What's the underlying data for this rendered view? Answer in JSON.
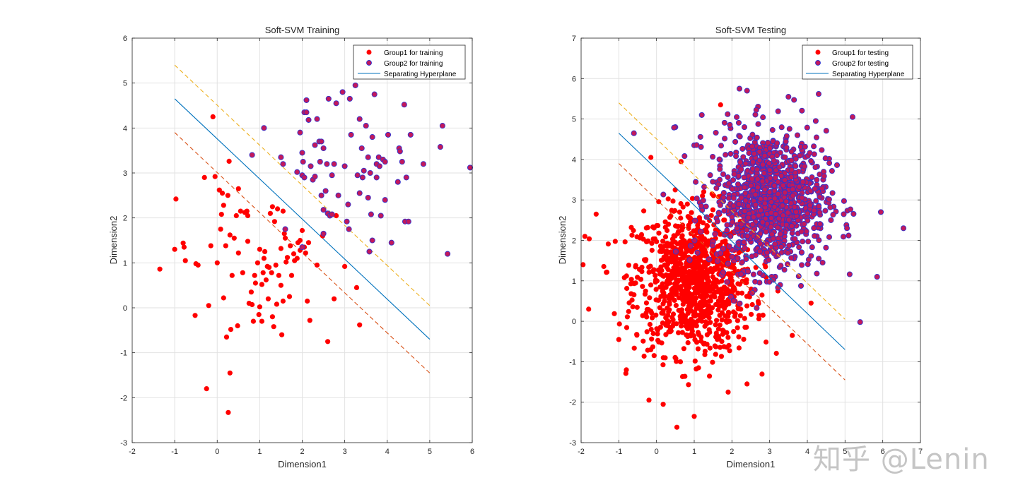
{
  "watermark": "知乎 @Lenin",
  "colors": {
    "group1": "#ff0000",
    "group2_fill": "#c2185b",
    "group2_edge": "#3333cc",
    "hyperplane": "#0072bd",
    "margin_upper": "#edb120",
    "margin_lower": "#d95319",
    "grid": "#e2e2e2",
    "axis": "#262626"
  },
  "chart_data": [
    {
      "type": "scatter",
      "title": "Soft-SVM Training",
      "xlabel": "Dimension1",
      "ylabel": "Dimension2",
      "xlim": [
        -2,
        6
      ],
      "ylim": [
        -3,
        6
      ],
      "xticks": [
        "-2",
        "-1",
        "0",
        "1",
        "2",
        "3",
        "4",
        "5",
        "6"
      ],
      "yticks": [
        "-3",
        "-2",
        "-1",
        "0",
        "1",
        "2",
        "3",
        "4",
        "5",
        "6"
      ],
      "grid": true,
      "legend_position": "top-right",
      "legend": [
        "Group1 for training",
        "Group2 for training",
        "Separating Hyperplane"
      ],
      "lines": {
        "hyperplane": [
          [
            -1,
            4.65
          ],
          [
            5,
            -0.7
          ]
        ],
        "margin_upper": [
          [
            -1,
            5.4
          ],
          [
            5,
            0.05
          ]
        ],
        "margin_lower": [
          [
            -1,
            3.9
          ],
          [
            5,
            -1.45
          ]
        ]
      },
      "series": [
        {
          "name": "Group1 for training",
          "points": [
            [
              -1.35,
              0.86
            ],
            [
              -0.97,
              2.42
            ],
            [
              -1.0,
              1.3
            ],
            [
              -0.8,
              1.44
            ],
            [
              -0.78,
              1.35
            ],
            [
              -0.75,
              1.05
            ],
            [
              -0.5,
              0.98
            ],
            [
              -0.45,
              0.95
            ],
            [
              -0.52,
              -0.17
            ],
            [
              -0.3,
              2.9
            ],
            [
              -0.25,
              -1.8
            ],
            [
              -0.2,
              0.05
            ],
            [
              -0.15,
              1.38
            ],
            [
              -0.1,
              4.25
            ],
            [
              -0.05,
              2.92
            ],
            [
              0.0,
              1.0
            ],
            [
              0.05,
              2.62
            ],
            [
              0.08,
              1.75
            ],
            [
              0.1,
              2.08
            ],
            [
              0.12,
              2.55
            ],
            [
              0.15,
              0.22
            ],
            [
              0.15,
              2.28
            ],
            [
              0.2,
              1.38
            ],
            [
              0.22,
              -0.65
            ],
            [
              0.25,
              2.5
            ],
            [
              0.26,
              -2.33
            ],
            [
              0.28,
              3.26
            ],
            [
              0.3,
              -1.45
            ],
            [
              0.3,
              1.62
            ],
            [
              0.32,
              -0.48
            ],
            [
              0.35,
              0.72
            ],
            [
              0.4,
              1.55
            ],
            [
              0.45,
              2.05
            ],
            [
              0.48,
              -0.4
            ],
            [
              0.5,
              2.65
            ],
            [
              0.5,
              1.22
            ],
            [
              0.55,
              2.15
            ],
            [
              0.6,
              0.78
            ],
            [
              0.65,
              2.12
            ],
            [
              0.7,
              2.15
            ],
            [
              0.72,
              2.05
            ],
            [
              0.72,
              1.48
            ],
            [
              0.75,
              0.1
            ],
            [
              0.8,
              0.35
            ],
            [
              0.82,
              0.07
            ],
            [
              0.85,
              -0.3
            ],
            [
              0.88,
              0.72
            ],
            [
              0.9,
              0.55
            ],
            [
              0.95,
              1.0
            ],
            [
              0.98,
              -0.15
            ],
            [
              1.0,
              0.02
            ],
            [
              1.0,
              1.3
            ],
            [
              1.05,
              0.52
            ],
            [
              1.05,
              -0.3
            ],
            [
              1.08,
              0.78
            ],
            [
              1.1,
              1.1
            ],
            [
              1.12,
              1.25
            ],
            [
              1.15,
              0.62
            ],
            [
              1.18,
              0.92
            ],
            [
              1.2,
              0.2
            ],
            [
              1.22,
              0.9
            ],
            [
              1.25,
              2.1
            ],
            [
              1.28,
              0.78
            ],
            [
              1.3,
              2.25
            ],
            [
              1.3,
              -0.2
            ],
            [
              1.33,
              -0.42
            ],
            [
              1.35,
              1.92
            ],
            [
              1.38,
              0.95
            ],
            [
              1.4,
              0.08
            ],
            [
              1.42,
              2.2
            ],
            [
              1.45,
              0.72
            ],
            [
              1.5,
              1.32
            ],
            [
              1.5,
              0.5
            ],
            [
              1.52,
              -0.6
            ],
            [
              1.55,
              2.15
            ],
            [
              1.55,
              0.15
            ],
            [
              1.58,
              1.65
            ],
            [
              1.6,
              1.55
            ],
            [
              1.62,
              1.02
            ],
            [
              1.65,
              1.12
            ],
            [
              1.7,
              0.25
            ],
            [
              1.72,
              1.38
            ],
            [
              1.75,
              0.72
            ],
            [
              1.8,
              1.2
            ],
            [
              1.82,
              1.05
            ],
            [
              1.88,
              1.1
            ],
            [
              1.9,
              1.45
            ],
            [
              1.95,
              1.28
            ],
            [
              1.95,
              1.5
            ],
            [
              2.0,
              1.72
            ],
            [
              2.05,
              1.35
            ],
            [
              2.08,
              1.22
            ],
            [
              2.12,
              0.15
            ],
            [
              2.15,
              1.45
            ],
            [
              2.18,
              -0.28
            ],
            [
              2.35,
              0.95
            ],
            [
              2.48,
              1.6
            ],
            [
              2.6,
              -0.75
            ],
            [
              2.75,
              0.2
            ],
            [
              2.8,
              2.05
            ],
            [
              3.0,
              0.92
            ],
            [
              3.28,
              0.45
            ],
            [
              3.35,
              -0.38
            ]
          ]
        },
        {
          "name": "Group2 for training",
          "points": [
            [
              0.82,
              3.4
            ],
            [
              1.1,
              4.0
            ],
            [
              1.5,
              3.35
            ],
            [
              1.55,
              3.2
            ],
            [
              1.88,
              3.02
            ],
            [
              1.95,
              3.9
            ],
            [
              2.0,
              3.45
            ],
            [
              2.02,
              3.25
            ],
            [
              2.0,
              2.95
            ],
            [
              2.05,
              2.9
            ],
            [
              2.05,
              4.35
            ],
            [
              2.1,
              4.62
            ],
            [
              2.1,
              4.35
            ],
            [
              2.15,
              4.18
            ],
            [
              2.2,
              3.15
            ],
            [
              2.25,
              2.85
            ],
            [
              2.3,
              2.92
            ],
            [
              2.3,
              3.62
            ],
            [
              2.35,
              4.2
            ],
            [
              2.4,
              3.7
            ],
            [
              2.42,
              3.25
            ],
            [
              2.45,
              2.5
            ],
            [
              2.45,
              3.7
            ],
            [
              2.5,
              3.55
            ],
            [
              2.5,
              2.18
            ],
            [
              2.55,
              2.6
            ],
            [
              2.58,
              3.2
            ],
            [
              2.6,
              2.1
            ],
            [
              2.62,
              4.65
            ],
            [
              2.65,
              2.05
            ],
            [
              2.7,
              2.95
            ],
            [
              2.7,
              2.08
            ],
            [
              2.75,
              3.2
            ],
            [
              2.8,
              4.55
            ],
            [
              2.85,
              2.5
            ],
            [
              2.95,
              4.8
            ],
            [
              3.0,
              3.15
            ],
            [
              3.05,
              1.92
            ],
            [
              3.08,
              2.3
            ],
            [
              3.1,
              1.75
            ],
            [
              3.12,
              4.65
            ],
            [
              3.15,
              3.85
            ],
            [
              3.25,
              4.95
            ],
            [
              3.3,
              2.95
            ],
            [
              3.35,
              2.55
            ],
            [
              3.35,
              4.2
            ],
            [
              3.4,
              3.55
            ],
            [
              3.42,
              2.9
            ],
            [
              3.45,
              3.05
            ],
            [
              3.5,
              4.05
            ],
            [
              3.55,
              3.35
            ],
            [
              3.55,
              2.45
            ],
            [
              3.58,
              1.25
            ],
            [
              3.6,
              3.0
            ],
            [
              3.62,
              2.08
            ],
            [
              3.65,
              3.8
            ],
            [
              3.65,
              1.5
            ],
            [
              3.7,
              4.75
            ],
            [
              3.75,
              3.2
            ],
            [
              3.75,
              2.9
            ],
            [
              3.8,
              3.35
            ],
            [
              3.82,
              3.15
            ],
            [
              3.85,
              2.05
            ],
            [
              3.9,
              3.3
            ],
            [
              3.95,
              3.25
            ],
            [
              3.95,
              2.4
            ],
            [
              4.02,
              3.85
            ],
            [
              4.1,
              1.45
            ],
            [
              4.25,
              2.8
            ],
            [
              4.28,
              3.55
            ],
            [
              4.3,
              3.48
            ],
            [
              4.35,
              3.25
            ],
            [
              4.4,
              4.52
            ],
            [
              4.42,
              1.92
            ],
            [
              4.45,
              2.9
            ],
            [
              4.5,
              1.92
            ],
            [
              4.55,
              3.85
            ],
            [
              4.85,
              3.2
            ],
            [
              5.25,
              3.58
            ],
            [
              5.3,
              4.05
            ],
            [
              5.42,
              1.2
            ],
            [
              5.95,
              3.12
            ],
            [
              2.0,
              1.35
            ],
            [
              2.5,
              1.65
            ],
            [
              1.6,
              1.75
            ]
          ]
        }
      ]
    },
    {
      "type": "scatter",
      "title": "Soft-SVM Testing",
      "xlabel": "Dimension1",
      "ylabel": "Dimension2",
      "xlim": [
        -2,
        7
      ],
      "ylim": [
        -3,
        7
      ],
      "xticks": [
        "-2",
        "-1",
        "0",
        "1",
        "2",
        "3",
        "4",
        "5",
        "6",
        "7"
      ],
      "yticks": [
        "-3",
        "-2",
        "-1",
        "0",
        "1",
        "2",
        "3",
        "4",
        "5",
        "6",
        "7"
      ],
      "grid": true,
      "legend_position": "top-right",
      "legend": [
        "Group1 for testing",
        "Group2 for testing",
        "Separating Hyperplane"
      ],
      "lines": {
        "hyperplane": [
          [
            -1,
            4.65
          ],
          [
            5,
            -0.7
          ]
        ],
        "margin_upper": [
          [
            -1,
            5.4
          ],
          [
            5,
            0.05
          ]
        ],
        "margin_lower": [
          [
            -1,
            3.9
          ],
          [
            5,
            -1.45
          ]
        ]
      },
      "series": [
        {
          "name": "Group1 for testing",
          "distribution": "gaussian",
          "center": [
            1.0,
            1.0
          ],
          "std": [
            0.8,
            0.9
          ],
          "count": 1000,
          "points": [
            [
              -1.9,
              2.1
            ],
            [
              -1.95,
              1.4
            ],
            [
              -1.6,
              2.65
            ],
            [
              -1.8,
              0.3
            ],
            [
              -0.2,
              -1.95
            ],
            [
              1.0,
              -2.35
            ],
            [
              1.9,
              -1.75
            ],
            [
              2.4,
              -1.55
            ],
            [
              1.7,
              5.35
            ],
            [
              -0.15,
              4.05
            ],
            [
              3.6,
              -0.35
            ],
            [
              4.1,
              0.45
            ],
            [
              -0.8,
              -1.2
            ],
            [
              -1.0,
              -0.45
            ]
          ]
        },
        {
          "name": "Group2 for testing",
          "distribution": "gaussian",
          "center": [
            3.0,
            3.0
          ],
          "std": [
            0.75,
            0.85
          ],
          "count": 1000,
          "points": [
            [
              -0.6,
              4.65
            ],
            [
              1.0,
              4.35
            ],
            [
              0.5,
              4.8
            ],
            [
              2.2,
              5.75
            ],
            [
              2.4,
              5.7
            ],
            [
              4.3,
              5.62
            ],
            [
              5.2,
              5.05
            ],
            [
              6.55,
              2.3
            ],
            [
              5.85,
              1.1
            ],
            [
              5.4,
              -0.02
            ],
            [
              5.95,
              2.7
            ],
            [
              3.5,
              5.55
            ],
            [
              1.2,
              5.1
            ]
          ]
        }
      ]
    }
  ]
}
